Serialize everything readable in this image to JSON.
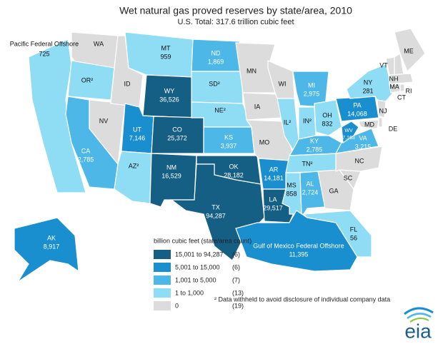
{
  "title": "Wet natural gas proved reserves by state/area, 2010",
  "subtitle": "U.S. Total: 317.6 trillion cubic feet",
  "states": [
    {
      "name": "Pacific Federal Offshore",
      "value": "725",
      "color": "#8fdcf5"
    },
    {
      "name": "WA",
      "color": "#dcdcdc"
    },
    {
      "name": "OR²",
      "color": "#8fdcf5"
    },
    {
      "name": "CA",
      "value": "2,785",
      "color": "#4db8e8"
    },
    {
      "name": "NV",
      "color": "#dcdcdc"
    },
    {
      "name": "ID",
      "color": "#dcdcdc"
    },
    {
      "name": "MT",
      "value": "959",
      "color": "#8fdcf5"
    },
    {
      "name": "WY",
      "value": "36,526",
      "color": "#165f84"
    },
    {
      "name": "UT",
      "value": "7,146",
      "color": "#1a8fcf"
    },
    {
      "name": "CO",
      "value": "25,372",
      "color": "#165f84"
    },
    {
      "name": "AZ²",
      "color": "#8fdcf5"
    },
    {
      "name": "NM",
      "value": "16,529",
      "color": "#165f84"
    },
    {
      "name": "ND",
      "value": "1,869",
      "color": "#4db8e8"
    },
    {
      "name": "SD²",
      "color": "#8fdcf5"
    },
    {
      "name": "NE²",
      "color": "#8fdcf5"
    },
    {
      "name": "KS",
      "value": "3,937",
      "color": "#4db8e8"
    },
    {
      "name": "OK",
      "value": "28,182",
      "color": "#165f84"
    },
    {
      "name": "TX",
      "value": "94,287",
      "color": "#165f84"
    },
    {
      "name": "MN",
      "color": "#dcdcdc"
    },
    {
      "name": "IA",
      "color": "#dcdcdc"
    },
    {
      "name": "MO",
      "color": "#dcdcdc"
    },
    {
      "name": "AR",
      "value": "14,181",
      "color": "#1a8fcf"
    },
    {
      "name": "LA",
      "value": "29,517",
      "color": "#165f84"
    },
    {
      "name": "WI",
      "color": "#dcdcdc"
    },
    {
      "name": "IL²",
      "color": "#8fdcf5"
    },
    {
      "name": "MI",
      "value": "2,975",
      "color": "#4db8e8"
    },
    {
      "name": "IN²",
      "color": "#8fdcf5"
    },
    {
      "name": "OH",
      "value": "832",
      "color": "#8fdcf5"
    },
    {
      "name": "KY",
      "value": "2,785",
      "color": "#4db8e8"
    },
    {
      "name": "TN²",
      "color": "#8fdcf5"
    },
    {
      "name": "MS",
      "value": "858",
      "color": "#8fdcf5"
    },
    {
      "name": "AL",
      "value": "2,724",
      "color": "#4db8e8"
    },
    {
      "name": "GA",
      "color": "#dcdcdc"
    },
    {
      "name": "FL",
      "value": "56",
      "color": "#8fdcf5"
    },
    {
      "name": "SC",
      "color": "#dcdcdc"
    },
    {
      "name": "NC",
      "color": "#dcdcdc"
    },
    {
      "name": "VA",
      "value": "3,215",
      "color": "#4db8e8"
    },
    {
      "name": "WV",
      "value": "7,163",
      "color": "#1a8fcf"
    },
    {
      "name": "PA",
      "value": "14,068",
      "color": "#1a8fcf"
    },
    {
      "name": "MD",
      "color": "#dcdcdc"
    },
    {
      "name": "DE",
      "color": "#dcdcdc"
    },
    {
      "name": "NJ",
      "color": "#dcdcdc"
    },
    {
      "name": "NY",
      "value": "281",
      "color": "#8fdcf5"
    },
    {
      "name": "VT",
      "color": "#dcdcdc"
    },
    {
      "name": "NH",
      "color": "#dcdcdc"
    },
    {
      "name": "MA",
      "color": "#dcdcdc"
    },
    {
      "name": "CT",
      "color": "#dcdcdc"
    },
    {
      "name": "RI",
      "color": "#dcdcdc"
    },
    {
      "name": "ME",
      "color": "#dcdcdc"
    },
    {
      "name": "Gulf of Mexico Federal Offshore",
      "value": "11,395",
      "color": "#1a8fcf"
    },
    {
      "name": "AK",
      "value": "8,917",
      "color": "#1a8fcf"
    }
  ],
  "legend": {
    "title": "billion cubic feet (state/area count)",
    "items": [
      {
        "label": "15,001 to 94,287",
        "count": "(6)",
        "color": "#165f84"
      },
      {
        "label": "5,001 to 15,000",
        "count": "(6)",
        "color": "#1a8fcf"
      },
      {
        "label": "1,001 to 5,000",
        "count": "(7)",
        "color": "#4db8e8"
      },
      {
        "label": "1 to 1,000",
        "count": "(13)",
        "color": "#8fdcf5"
      },
      {
        "label": "0",
        "count": "(19)",
        "color": "#dcdcdc"
      }
    ]
  },
  "footnote": "² Data withheld to avoid disclosure of individual company data",
  "logo": "eia"
}
